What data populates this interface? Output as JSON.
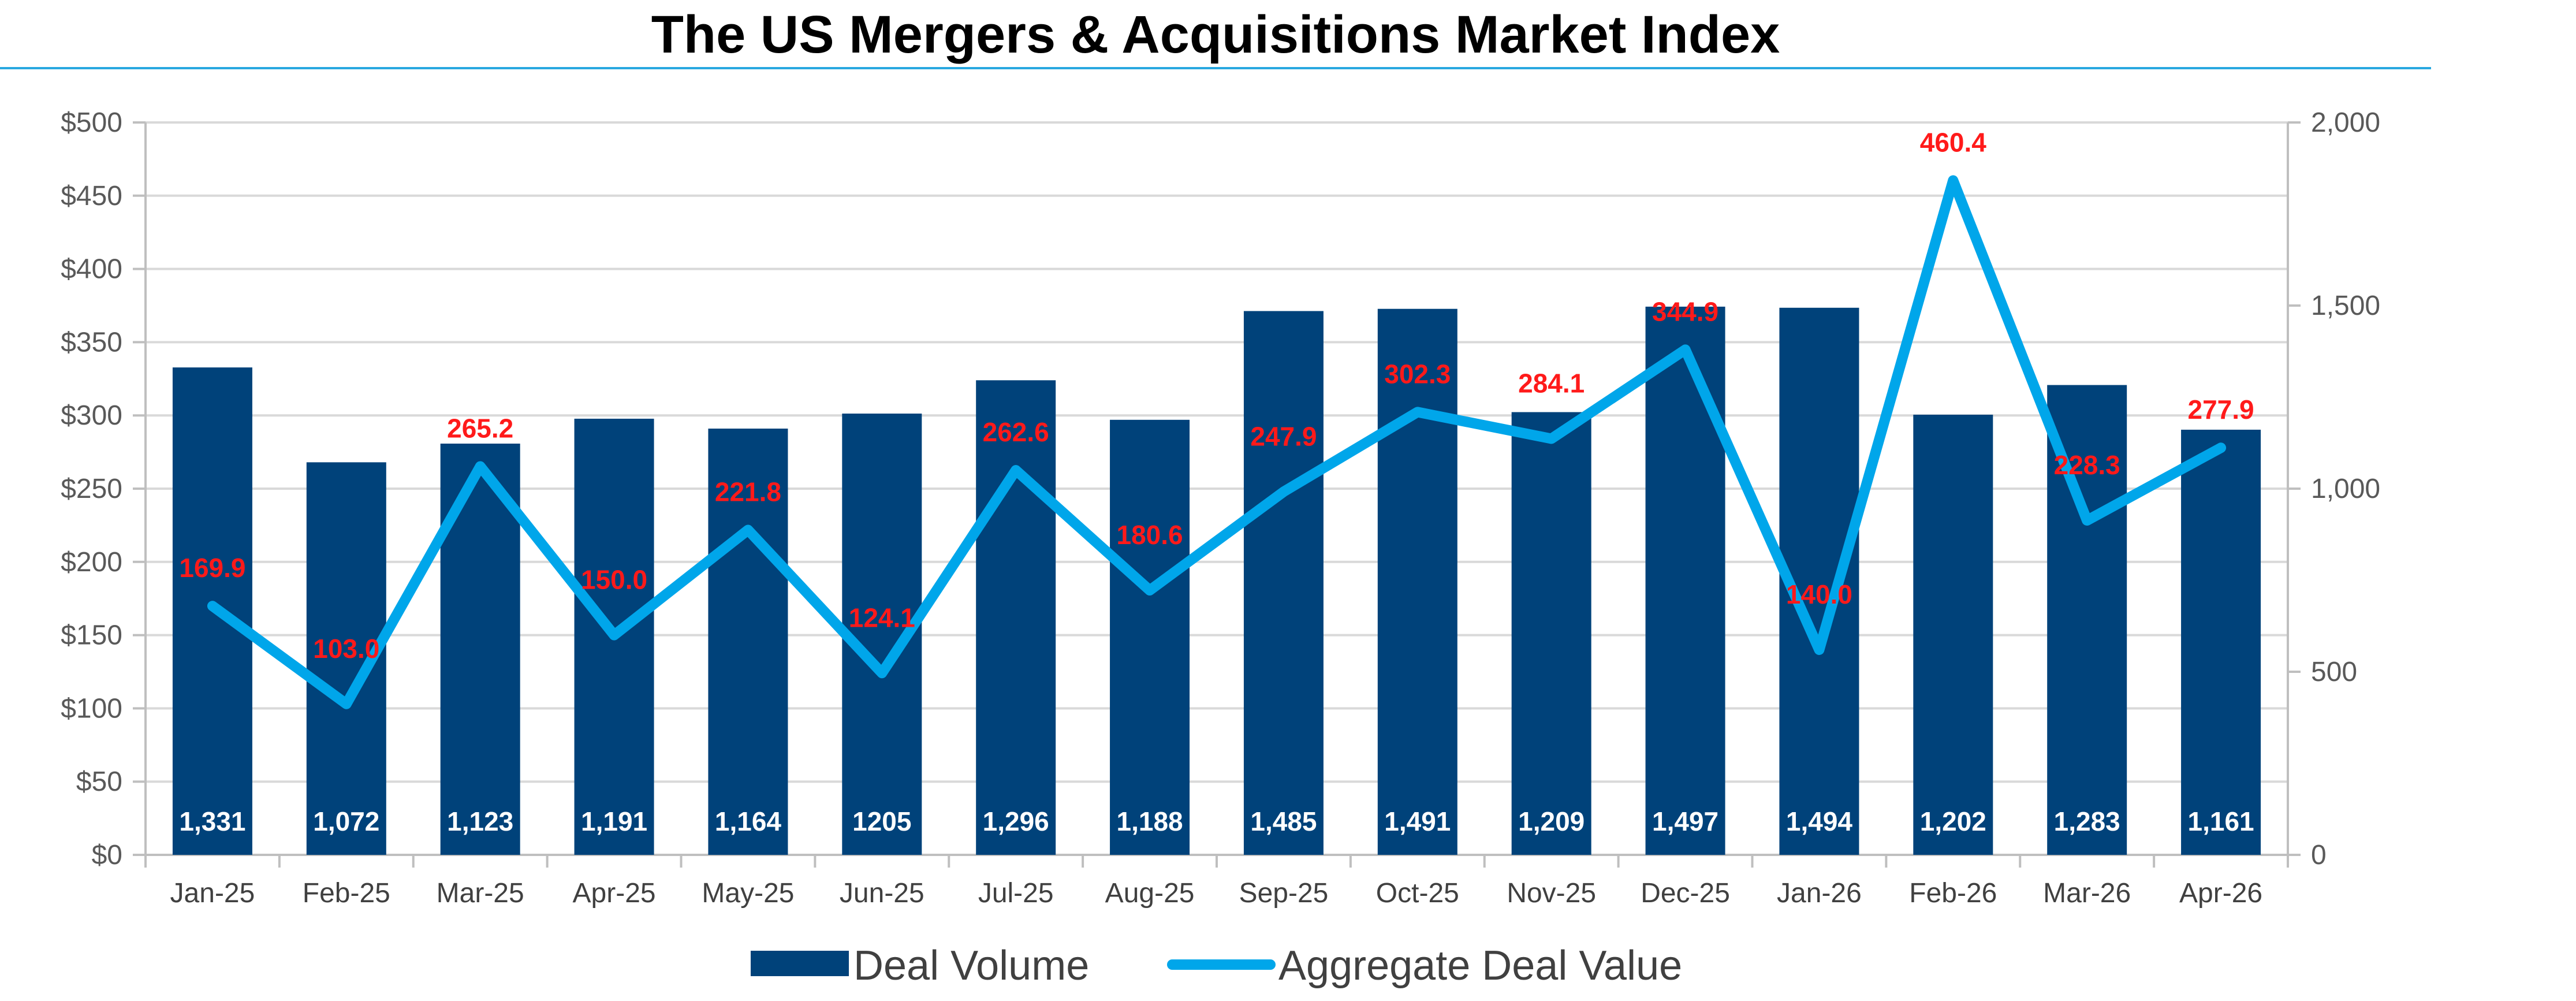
{
  "colors": {
    "bar": "#00427a",
    "line": "#00a6ea",
    "value_label": "#ff1a1a",
    "vol_label": "#ffffff",
    "title_rule": "#29a8e0"
  },
  "chart_data": {
    "type": "bar",
    "title": "The US Mergers & Acquisitions Market Index",
    "categories": [
      "Jan-25",
      "Feb-25",
      "Mar-25",
      "Apr-25",
      "May-25",
      "Jun-25",
      "Jul-25",
      "Aug-25",
      "Sep-25",
      "Oct-25",
      "Nov-25",
      "Dec-25",
      "Jan-26",
      "Feb-26",
      "Mar-26",
      "Apr-26"
    ],
    "series": [
      {
        "name": "Deal Volume",
        "type": "bar",
        "axis": "right",
        "values": [
          1331,
          1072,
          1123,
          1191,
          1164,
          1205,
          1296,
          1188,
          1485,
          1491,
          1209,
          1497,
          1494,
          1202,
          1283,
          1161
        ],
        "labels": [
          "1,331",
          "1,072",
          "1,123",
          "1,191",
          "1,164",
          "1205",
          "1,296",
          "1,188",
          "1,485",
          "1,491",
          "1,209",
          "1,497",
          "1,494",
          "1,202",
          "1,283",
          "1,161"
        ]
      },
      {
        "name": "Aggregate Deal Value",
        "type": "line",
        "axis": "left",
        "values": [
          169.9,
          103.0,
          265.2,
          150.0,
          221.8,
          124.1,
          262.6,
          180.6,
          247.9,
          302.3,
          284.1,
          344.9,
          140.0,
          460.4,
          228.3,
          277.9
        ],
        "labels": [
          "169.9",
          "103.0",
          "265.2",
          "150.0",
          "221.8",
          "124.1",
          "262.6",
          "180.6",
          "247.9",
          "302.3",
          "284.1",
          "344.9",
          "140.0",
          "460.4",
          "228.3",
          "277.9"
        ]
      }
    ],
    "y_left": {
      "ylim": [
        0,
        500
      ],
      "ticks": [
        "$0",
        "$50",
        "$100",
        "$150",
        "$200",
        "$250",
        "$300",
        "$350",
        "$400",
        "$450",
        "$500"
      ]
    },
    "y_right": {
      "ylim": [
        0,
        2000
      ],
      "ticks": [
        "0",
        "500",
        "1,000",
        "1,500",
        "2,000"
      ]
    },
    "grid": true,
    "legend_position": "bottom"
  }
}
